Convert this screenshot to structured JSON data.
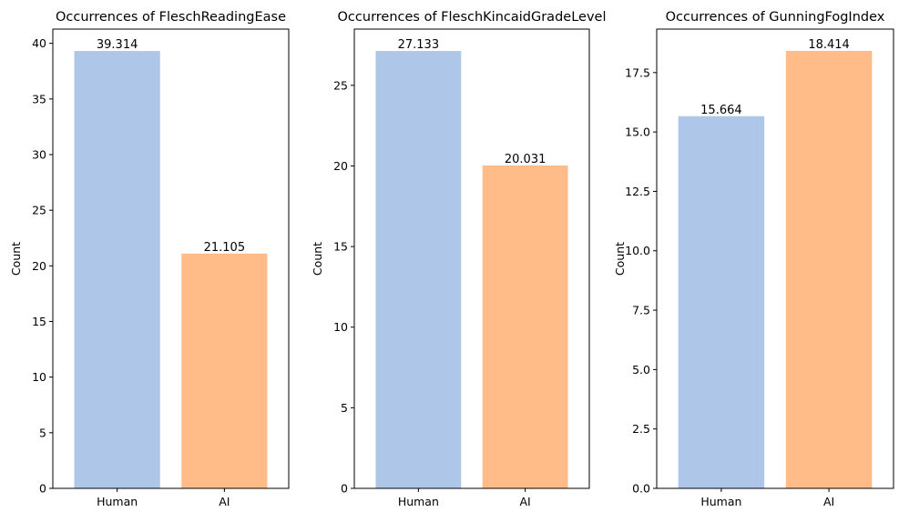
{
  "colors": {
    "human": "#aec7e8",
    "ai": "#ffbb88",
    "axis": "#000000"
  },
  "chart_data": [
    {
      "type": "bar",
      "title": "Occurrences of FleschReadingEase",
      "xlabel": "",
      "ylabel": "Count",
      "categories": [
        "Human",
        "AI"
      ],
      "values": [
        39.314,
        21.105
      ],
      "value_labels": [
        "39.314",
        "21.105"
      ],
      "ylim": [
        0,
        41.28
      ],
      "yticks": [
        0,
        5,
        10,
        15,
        20,
        25,
        30,
        35,
        40
      ],
      "ytick_labels": [
        "0",
        "5",
        "10",
        "15",
        "20",
        "25",
        "30",
        "35",
        "40"
      ],
      "grid": false
    },
    {
      "type": "bar",
      "title": "Occurrences of FleschKincaidGradeLevel",
      "xlabel": "",
      "ylabel": "Count",
      "categories": [
        "Human",
        "AI"
      ],
      "values": [
        27.133,
        20.031
      ],
      "value_labels": [
        "27.133",
        "20.031"
      ],
      "ylim": [
        0,
        28.49
      ],
      "yticks": [
        0,
        5,
        10,
        15,
        20,
        25
      ],
      "ytick_labels": [
        "0",
        "5",
        "10",
        "15",
        "20",
        "25"
      ],
      "grid": false
    },
    {
      "type": "bar",
      "title": "Occurrences of GunningFogIndex",
      "xlabel": "",
      "ylabel": "Count",
      "categories": [
        "Human",
        "AI"
      ],
      "values": [
        15.664,
        18.414
      ],
      "value_labels": [
        "15.664",
        "18.414"
      ],
      "ylim": [
        0,
        19.33
      ],
      "yticks": [
        0,
        2.5,
        5,
        7.5,
        10,
        12.5,
        15,
        17.5
      ],
      "ytick_labels": [
        "0.0",
        "2.5",
        "5.0",
        "7.5",
        "10.0",
        "12.5",
        "15.0",
        "17.5"
      ],
      "grid": false
    }
  ]
}
